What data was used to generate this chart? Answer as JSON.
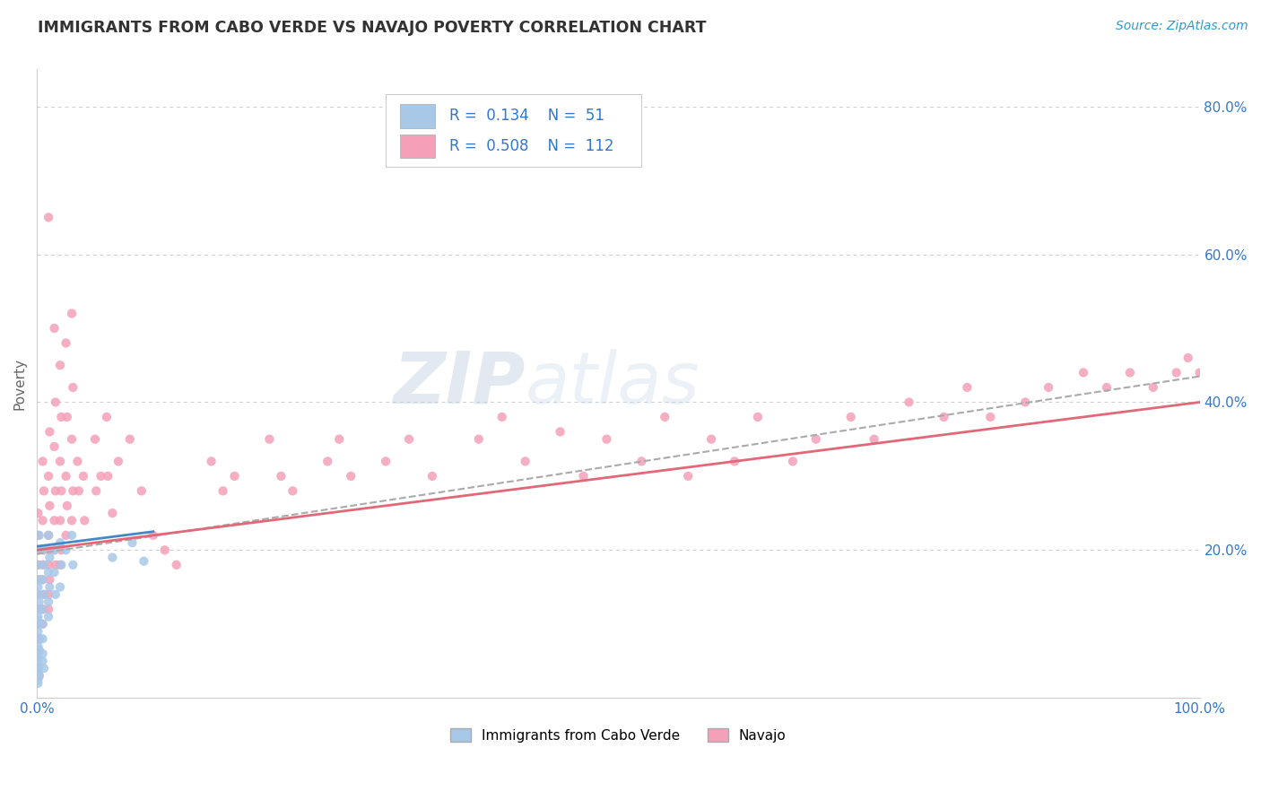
{
  "title": "IMMIGRANTS FROM CABO VERDE VS NAVAJO POVERTY CORRELATION CHART",
  "source_text": "Source: ZipAtlas.com",
  "ylabel": "Poverty",
  "xlim": [
    0.0,
    1.0
  ],
  "ylim": [
    0.0,
    0.85
  ],
  "legend_label1": "Immigrants from Cabo Verde",
  "legend_label2": "Navajo",
  "R1": "0.134",
  "N1": "51",
  "R2": "0.508",
  "N2": "112",
  "color_blue": "#a8c8e8",
  "color_pink": "#f4a0b8",
  "line_color_blue": "#8ab4d8",
  "line_color_pink": "#e06878",
  "watermark_zip": "ZIP",
  "watermark_atlas": "atlas",
  "background_color": "#ffffff",
  "scatter_blue": [
    [
      0.002,
      0.22
    ],
    [
      0.001,
      0.2
    ],
    [
      0.001,
      0.18
    ],
    [
      0.002,
      0.16
    ],
    [
      0.001,
      0.15
    ],
    [
      0.001,
      0.14
    ],
    [
      0.002,
      0.13
    ],
    [
      0.001,
      0.12
    ],
    [
      0.001,
      0.11
    ],
    [
      0.001,
      0.105
    ],
    [
      0.001,
      0.1
    ],
    [
      0.001,
      0.09
    ],
    [
      0.002,
      0.08
    ],
    [
      0.001,
      0.07
    ],
    [
      0.002,
      0.065
    ],
    [
      0.001,
      0.055
    ],
    [
      0.001,
      0.05
    ],
    [
      0.001,
      0.045
    ],
    [
      0.001,
      0.04
    ],
    [
      0.001,
      0.035
    ],
    [
      0.002,
      0.03
    ],
    [
      0.001,
      0.025
    ],
    [
      0.001,
      0.02
    ],
    [
      0.005,
      0.2
    ],
    [
      0.006,
      0.18
    ],
    [
      0.005,
      0.16
    ],
    [
      0.006,
      0.14
    ],
    [
      0.005,
      0.12
    ],
    [
      0.005,
      0.1
    ],
    [
      0.005,
      0.08
    ],
    [
      0.005,
      0.06
    ],
    [
      0.005,
      0.05
    ],
    [
      0.006,
      0.04
    ],
    [
      0.01,
      0.22
    ],
    [
      0.011,
      0.19
    ],
    [
      0.01,
      0.17
    ],
    [
      0.011,
      0.15
    ],
    [
      0.01,
      0.13
    ],
    [
      0.01,
      0.11
    ],
    [
      0.015,
      0.2
    ],
    [
      0.015,
      0.17
    ],
    [
      0.016,
      0.14
    ],
    [
      0.02,
      0.21
    ],
    [
      0.021,
      0.18
    ],
    [
      0.02,
      0.15
    ],
    [
      0.025,
      0.2
    ],
    [
      0.03,
      0.22
    ],
    [
      0.031,
      0.18
    ],
    [
      0.065,
      0.19
    ],
    [
      0.082,
      0.21
    ],
    [
      0.092,
      0.185
    ]
  ],
  "scatter_pink": [
    [
      0.002,
      0.12
    ],
    [
      0.001,
      0.1
    ],
    [
      0.002,
      0.08
    ],
    [
      0.001,
      0.06
    ],
    [
      0.001,
      0.04
    ],
    [
      0.002,
      0.03
    ],
    [
      0.001,
      0.25
    ],
    [
      0.001,
      0.22
    ],
    [
      0.002,
      0.2
    ],
    [
      0.001,
      0.18
    ],
    [
      0.002,
      0.16
    ],
    [
      0.001,
      0.14
    ],
    [
      0.005,
      0.32
    ],
    [
      0.006,
      0.28
    ],
    [
      0.005,
      0.24
    ],
    [
      0.006,
      0.2
    ],
    [
      0.005,
      0.18
    ],
    [
      0.005,
      0.16
    ],
    [
      0.006,
      0.14
    ],
    [
      0.005,
      0.12
    ],
    [
      0.005,
      0.1
    ],
    [
      0.01,
      0.65
    ],
    [
      0.011,
      0.36
    ],
    [
      0.01,
      0.3
    ],
    [
      0.011,
      0.26
    ],
    [
      0.01,
      0.22
    ],
    [
      0.011,
      0.2
    ],
    [
      0.01,
      0.18
    ],
    [
      0.011,
      0.16
    ],
    [
      0.01,
      0.14
    ],
    [
      0.01,
      0.12
    ],
    [
      0.015,
      0.5
    ],
    [
      0.016,
      0.4
    ],
    [
      0.015,
      0.34
    ],
    [
      0.016,
      0.28
    ],
    [
      0.015,
      0.24
    ],
    [
      0.015,
      0.2
    ],
    [
      0.016,
      0.18
    ],
    [
      0.02,
      0.45
    ],
    [
      0.021,
      0.38
    ],
    [
      0.02,
      0.32
    ],
    [
      0.021,
      0.28
    ],
    [
      0.02,
      0.24
    ],
    [
      0.021,
      0.2
    ],
    [
      0.02,
      0.18
    ],
    [
      0.025,
      0.48
    ],
    [
      0.026,
      0.38
    ],
    [
      0.025,
      0.3
    ],
    [
      0.026,
      0.26
    ],
    [
      0.025,
      0.22
    ],
    [
      0.03,
      0.52
    ],
    [
      0.031,
      0.42
    ],
    [
      0.03,
      0.35
    ],
    [
      0.031,
      0.28
    ],
    [
      0.03,
      0.24
    ],
    [
      0.035,
      0.32
    ],
    [
      0.036,
      0.28
    ],
    [
      0.04,
      0.3
    ],
    [
      0.041,
      0.24
    ],
    [
      0.05,
      0.35
    ],
    [
      0.051,
      0.28
    ],
    [
      0.055,
      0.3
    ],
    [
      0.06,
      0.38
    ],
    [
      0.061,
      0.3
    ],
    [
      0.065,
      0.25
    ],
    [
      0.07,
      0.32
    ],
    [
      0.08,
      0.35
    ],
    [
      0.09,
      0.28
    ],
    [
      0.1,
      0.22
    ],
    [
      0.11,
      0.2
    ],
    [
      0.12,
      0.18
    ],
    [
      0.15,
      0.32
    ],
    [
      0.16,
      0.28
    ],
    [
      0.17,
      0.3
    ],
    [
      0.2,
      0.35
    ],
    [
      0.21,
      0.3
    ],
    [
      0.22,
      0.28
    ],
    [
      0.25,
      0.32
    ],
    [
      0.26,
      0.35
    ],
    [
      0.27,
      0.3
    ],
    [
      0.3,
      0.32
    ],
    [
      0.32,
      0.35
    ],
    [
      0.34,
      0.3
    ],
    [
      0.38,
      0.35
    ],
    [
      0.4,
      0.38
    ],
    [
      0.42,
      0.32
    ],
    [
      0.45,
      0.36
    ],
    [
      0.47,
      0.3
    ],
    [
      0.49,
      0.35
    ],
    [
      0.52,
      0.32
    ],
    [
      0.54,
      0.38
    ],
    [
      0.56,
      0.3
    ],
    [
      0.58,
      0.35
    ],
    [
      0.6,
      0.32
    ],
    [
      0.62,
      0.38
    ],
    [
      0.65,
      0.32
    ],
    [
      0.67,
      0.35
    ],
    [
      0.7,
      0.38
    ],
    [
      0.72,
      0.35
    ],
    [
      0.75,
      0.4
    ],
    [
      0.78,
      0.38
    ],
    [
      0.8,
      0.42
    ],
    [
      0.82,
      0.38
    ],
    [
      0.85,
      0.4
    ],
    [
      0.87,
      0.42
    ],
    [
      0.9,
      0.44
    ],
    [
      0.92,
      0.42
    ],
    [
      0.94,
      0.44
    ],
    [
      0.96,
      0.42
    ],
    [
      0.98,
      0.44
    ],
    [
      0.99,
      0.46
    ],
    [
      1.0,
      0.44
    ]
  ],
  "blue_line": {
    "x0": 0.0,
    "x1": 0.1,
    "y0": 0.205,
    "y1": 0.225
  },
  "pink_line": {
    "x0": 0.0,
    "x1": 1.0,
    "y0": 0.2,
    "y1": 0.4
  },
  "dashed_line": {
    "x0": 0.0,
    "x1": 1.0,
    "y0": 0.195,
    "y1": 0.435
  }
}
